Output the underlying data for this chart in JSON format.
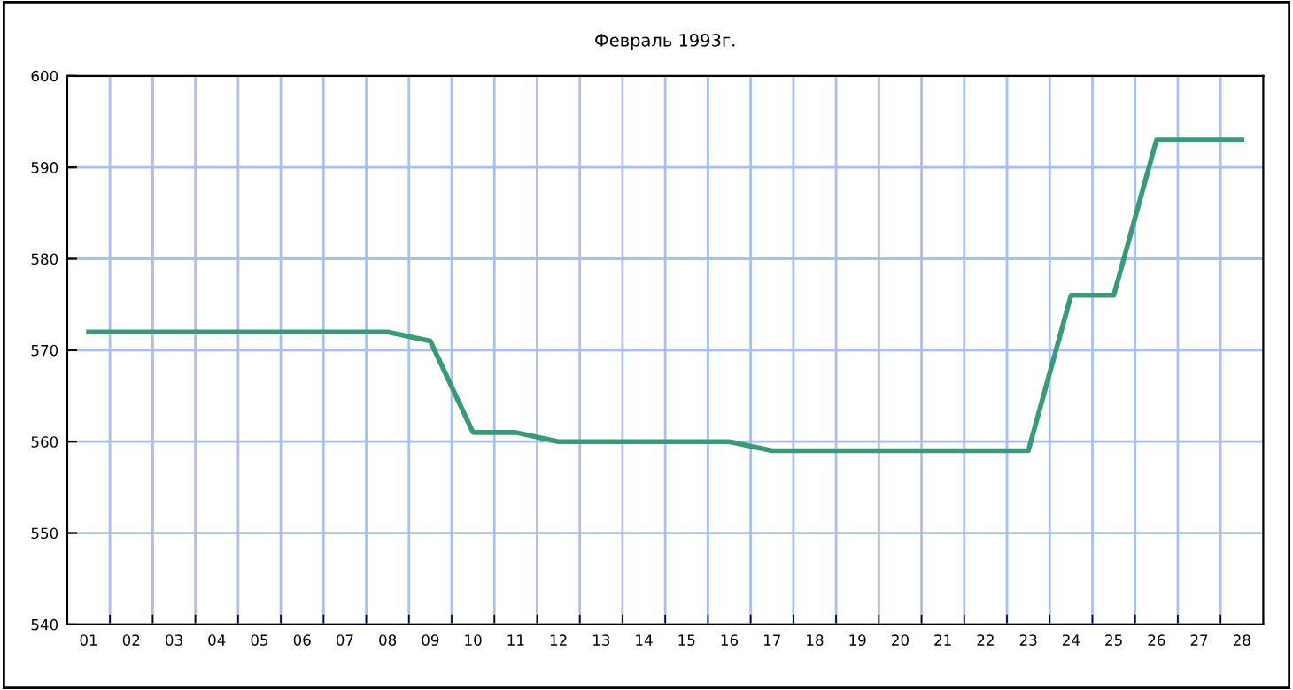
{
  "chart_data": {
    "type": "line",
    "title": "Февраль 1993г.",
    "categories": [
      "01",
      "02",
      "03",
      "04",
      "05",
      "06",
      "07",
      "08",
      "09",
      "10",
      "11",
      "12",
      "13",
      "14",
      "15",
      "16",
      "17",
      "18",
      "19",
      "20",
      "21",
      "22",
      "23",
      "24",
      "25",
      "26",
      "27",
      "28"
    ],
    "series": [
      {
        "color": "#3a9a78",
        "values": [
          572,
          572,
          572,
          572,
          572,
          572,
          572,
          572,
          571,
          561,
          561,
          560,
          560,
          560,
          560,
          560,
          559,
          559,
          559,
          559,
          559,
          559,
          559,
          576,
          576,
          593,
          593,
          593
        ]
      }
    ],
    "ylim": [
      540,
      600
    ],
    "yticks": [
      540,
      550,
      560,
      570,
      580,
      590,
      600
    ],
    "grid": true,
    "marker": "none",
    "line_style": "solid"
  }
}
